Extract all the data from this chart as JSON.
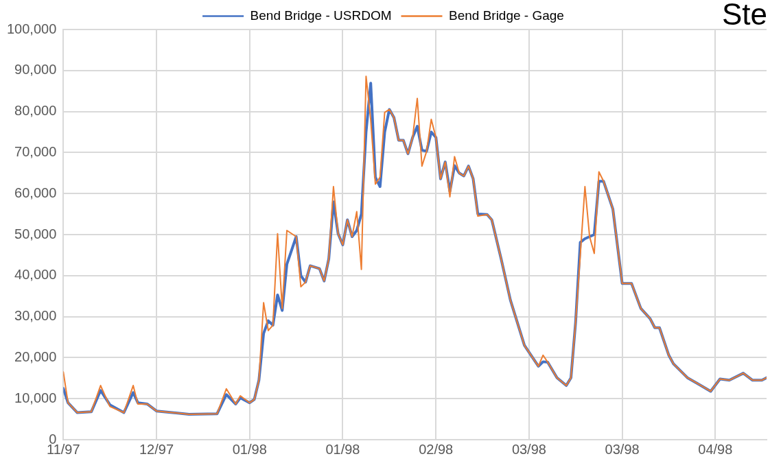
{
  "chart_data": {
    "type": "line",
    "title": "Ste",
    "x": [
      "1997-11-22",
      "1997-11-23",
      "1997-11-25",
      "1997-11-28",
      "1997-11-30",
      "1997-12-02",
      "1997-12-05",
      "1997-12-07",
      "1997-12-08",
      "1997-12-10",
      "1997-12-12",
      "1997-12-19",
      "1997-12-25",
      "1997-12-27",
      "1997-12-29",
      "1997-12-30",
      "1998-01-01",
      "1998-01-02",
      "1998-01-03",
      "1998-01-04",
      "1998-01-05",
      "1998-01-06",
      "1998-01-07",
      "1998-01-08",
      "1998-01-09",
      "1998-01-11",
      "1998-01-12",
      "1998-01-13",
      "1998-01-14",
      "1998-01-16",
      "1998-01-17",
      "1998-01-18",
      "1998-01-19",
      "1998-01-20",
      "1998-01-21",
      "1998-01-22",
      "1998-01-23",
      "1998-01-24",
      "1998-01-25",
      "1998-01-26",
      "1998-01-27",
      "1998-01-28",
      "1998-01-29",
      "1998-01-30",
      "1998-01-31",
      "1998-02-01",
      "1998-02-02",
      "1998-02-03",
      "1998-02-04",
      "1998-02-05",
      "1998-02-06",
      "1998-02-07",
      "1998-02-08",
      "1998-02-09",
      "1998-02-10",
      "1998-02-11",
      "1998-02-12",
      "1998-02-13",
      "1998-02-14",
      "1998-02-15",
      "1998-02-16",
      "1998-02-17",
      "1998-02-18",
      "1998-02-19",
      "1998-02-21",
      "1998-02-22",
      "1998-02-24",
      "1998-02-26",
      "1998-03-01",
      "1998-03-04",
      "1998-03-05",
      "1998-03-06",
      "1998-03-08",
      "1998-03-10",
      "1998-03-11",
      "1998-03-12",
      "1998-03-13",
      "1998-03-14",
      "1998-03-15",
      "1998-03-16",
      "1998-03-17",
      "1998-03-18",
      "1998-03-20",
      "1998-03-22",
      "1998-03-24",
      "1998-03-26",
      "1998-03-28",
      "1998-03-29",
      "1998-03-30",
      "1998-04-01",
      "1998-04-02",
      "1998-04-05",
      "1998-04-07",
      "1998-04-10",
      "1998-04-12",
      "1998-04-14",
      "1998-04-17",
      "1998-04-19",
      "1998-04-21",
      "1998-04-22"
    ],
    "series": [
      {
        "name": "Bend Bridge - USRDOM",
        "color": "#4472c4",
        "values": [
          12500,
          9000,
          6600,
          6800,
          12000,
          8500,
          6600,
          11500,
          9000,
          8700,
          7000,
          6200,
          6300,
          11000,
          8700,
          10200,
          9000,
          9800,
          14500,
          25900,
          29000,
          27900,
          35300,
          31500,
          42800,
          49500,
          40000,
          38400,
          42400,
          41700,
          38700,
          44100,
          58000,
          50200,
          47500,
          53600,
          49500,
          51000,
          55000,
          75000,
          86900,
          64000,
          61700,
          75000,
          80500,
          78500,
          73000,
          73000,
          69700,
          73700,
          76400,
          70600,
          70300,
          75000,
          73700,
          63600,
          67700,
          60500,
          66800,
          65000,
          64300,
          66700,
          63600,
          55000,
          54900,
          53600,
          44100,
          34000,
          23000,
          17900,
          19000,
          18900,
          15100,
          13200,
          15100,
          28700,
          48100,
          49000,
          49500,
          50000,
          63000,
          63000,
          56200,
          38100,
          38100,
          32000,
          29500,
          27300,
          27300,
          20600,
          18500,
          15100,
          13800,
          11800,
          14800,
          14500,
          16200,
          14500,
          14500,
          15100
        ]
      },
      {
        "name": "Bend Bridge - Gage",
        "color": "#ed7d31",
        "values": [
          16500,
          9000,
          6600,
          6800,
          13200,
          8100,
          6600,
          13200,
          8700,
          8700,
          7000,
          6200,
          6300,
          12400,
          8700,
          10700,
          9000,
          9800,
          14500,
          33400,
          26600,
          27900,
          50200,
          32000,
          51000,
          49500,
          37300,
          38400,
          42400,
          41700,
          38700,
          44100,
          61700,
          50200,
          47500,
          53600,
          49500,
          55600,
          41500,
          88600,
          78000,
          62300,
          64000,
          79800,
          80500,
          78500,
          73000,
          73000,
          69700,
          73700,
          83200,
          66700,
          70300,
          78100,
          73700,
          63600,
          67700,
          59200,
          69000,
          65000,
          64300,
          66700,
          63600,
          54500,
          54900,
          53600,
          44100,
          34000,
          23000,
          17900,
          20600,
          18900,
          15100,
          13200,
          15100,
          28700,
          45000,
          61700,
          49500,
          45400,
          65300,
          63000,
          56200,
          38100,
          38100,
          32000,
          29500,
          27300,
          27300,
          20600,
          18500,
          15100,
          13800,
          11800,
          14800,
          14500,
          16200,
          14500,
          14500,
          15100
        ]
      }
    ],
    "xlim": [
      "1997-11-22",
      "1998-04-22"
    ],
    "xticks": [
      {
        "value": "1997-11-22",
        "label": "11/97"
      },
      {
        "value": "1997-12-12",
        "label": "12/97"
      },
      {
        "value": "1998-01-01",
        "label": "01/98"
      },
      {
        "value": "1998-01-21",
        "label": "01/98"
      },
      {
        "value": "1998-02-10",
        "label": "02/98"
      },
      {
        "value": "1998-03-02",
        "label": "03/98"
      },
      {
        "value": "1998-03-22",
        "label": "03/98"
      },
      {
        "value": "1998-04-11",
        "label": "04/98"
      }
    ],
    "ylim": [
      0,
      100000
    ],
    "yticks": [
      {
        "value": 0,
        "label": "0"
      },
      {
        "value": 10000,
        "label": "10,000"
      },
      {
        "value": 20000,
        "label": "20,000"
      },
      {
        "value": 30000,
        "label": "30,000"
      },
      {
        "value": 40000,
        "label": "40,000"
      },
      {
        "value": 50000,
        "label": "50,000"
      },
      {
        "value": 60000,
        "label": "60,000"
      },
      {
        "value": 70000,
        "label": "70,000"
      },
      {
        "value": 80000,
        "label": "80,000"
      },
      {
        "value": 90000,
        "label": "90,000"
      },
      {
        "value": 100000,
        "label": "100,000"
      }
    ],
    "grid": true,
    "legend": "top",
    "marker": "none",
    "line_style": "solid"
  }
}
